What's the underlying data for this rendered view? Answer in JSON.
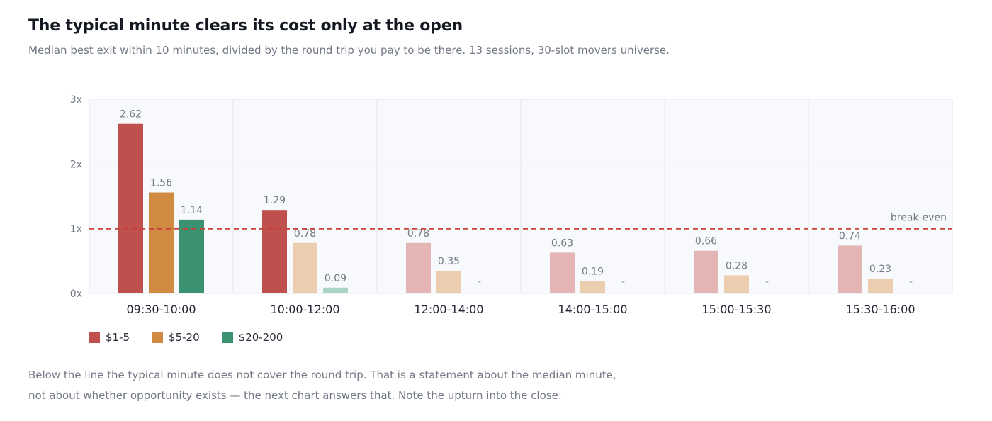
{
  "header": {
    "title": "The typical minute clears its cost only at the open",
    "subtitle": "Median best exit within 10 minutes, divided by the round trip you pay to be there. 13 sessions, 30-slot movers universe."
  },
  "note": {
    "line1": "Below the line the typical minute does not cover the round trip. That is a statement about the median minute,",
    "line2": "not about whether opportunity exists — the next chart answers that. Note the upturn into the close."
  },
  "chart_data": {
    "type": "bar",
    "title": "The typical minute clears its cost only at the open",
    "subtitle": "Median best exit within 10 minutes, divided by the round trip you pay to be there. 13 sessions, 30-slot movers universe.",
    "xlabel": "",
    "ylabel": "",
    "ylim": [
      0,
      3
    ],
    "yticks": [
      0,
      1,
      2,
      3
    ],
    "ytick_labels": [
      "0x",
      "1x",
      "2x",
      "3x"
    ],
    "grid": true,
    "legend": "bottom-left",
    "categories": [
      "09:30-10:00",
      "10:00-12:00",
      "12:00-14:00",
      "14:00-15:00",
      "15:00-15:30",
      "15:30-16:00"
    ],
    "series": [
      {
        "name": "$1-5",
        "color": "#c0504d",
        "faded_color": "#e4b5b4",
        "values": [
          2.62,
          1.29,
          0.78,
          0.63,
          0.66,
          0.74
        ],
        "labels": [
          "2.62",
          "1.29",
          "0.78",
          "0.63",
          "0.66",
          "0.74"
        ],
        "emphasized": [
          true,
          true,
          false,
          false,
          false,
          false
        ]
      },
      {
        "name": "$5-20",
        "color": "#d08a41",
        "faded_color": "#eccdaf",
        "values": [
          1.56,
          0.78,
          0.35,
          0.19,
          0.28,
          0.23
        ],
        "labels": [
          "1.56",
          "0.78",
          "0.35",
          "0.19",
          "0.28",
          "0.23"
        ],
        "emphasized": [
          true,
          false,
          false,
          false,
          false,
          false
        ]
      },
      {
        "name": "$20-200",
        "color": "#3b9270",
        "faded_color": "#a9d3c4",
        "values": [
          1.14,
          0.09,
          null,
          null,
          null,
          null
        ],
        "labels": [
          "1.14",
          "0.09",
          "-",
          "-",
          "-",
          "-"
        ],
        "emphasized": [
          true,
          false,
          false,
          false,
          false,
          false
        ]
      }
    ],
    "reference_line": {
      "value": 1,
      "label": "break-even",
      "color": "#c9403a"
    }
  }
}
